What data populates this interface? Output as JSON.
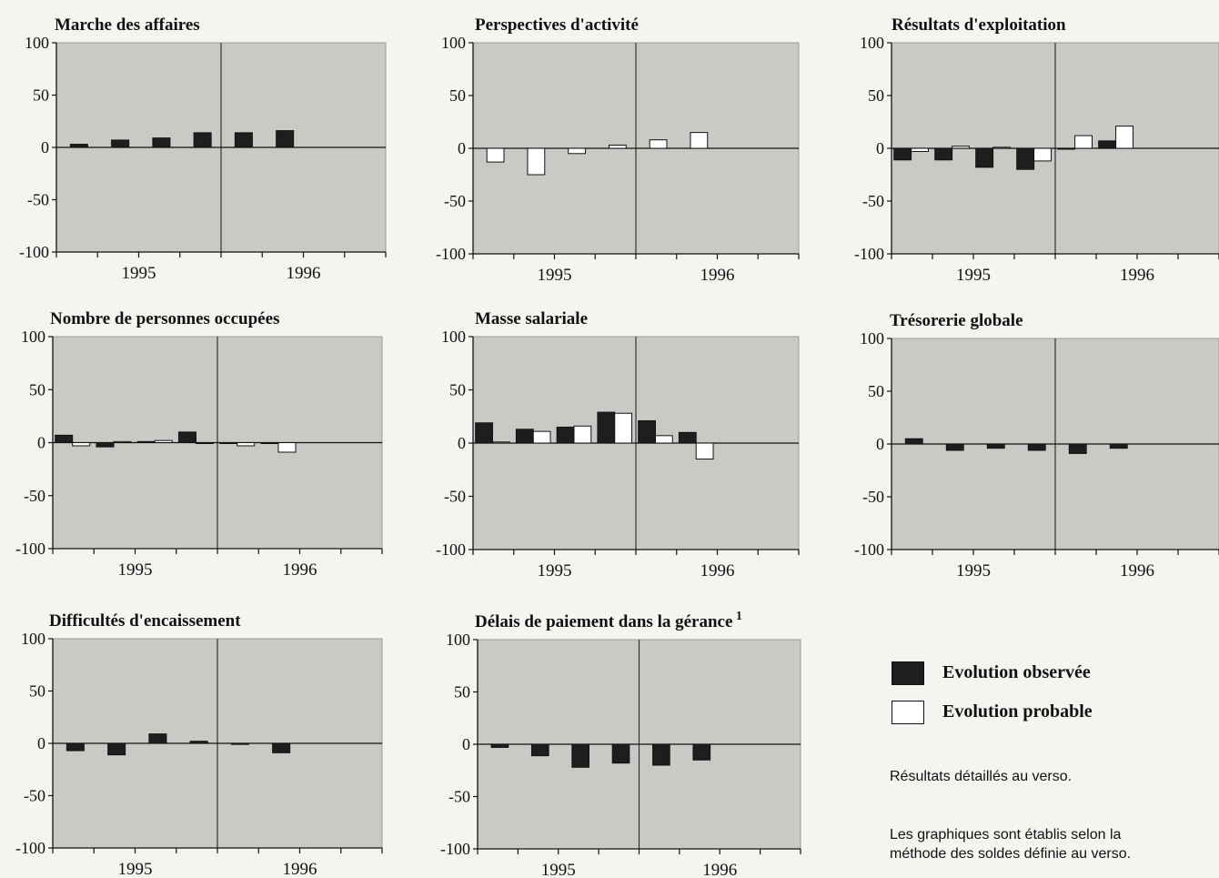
{
  "colors": {
    "plot_bg": "#c9c9c6",
    "observed": "#1e1e1e",
    "probable": "#ffffff",
    "axis": "#111111"
  },
  "legend": {
    "observed": "Evolution observée",
    "probable": "Evolution probable"
  },
  "notes": {
    "details": "Résultats détaillés au verso.",
    "method_line1": "Les graphiques sont établis selon la",
    "method_line2": "méthode des soldes définie au verso."
  },
  "chart_data": [
    {
      "type": "bar",
      "title": "Marche des affaires",
      "footnote": "",
      "ylim": [
        -100,
        100
      ],
      "yticks": [
        100,
        50,
        0,
        -50,
        -100
      ],
      "xlabels": [
        "1995",
        "1996"
      ],
      "series": [
        {
          "key": "observed",
          "values": [
            3,
            7,
            9,
            14,
            14,
            16,
            null,
            null
          ]
        }
      ]
    },
    {
      "type": "bar",
      "title": "Perspectives d'activité",
      "footnote": "",
      "ylim": [
        -100,
        100
      ],
      "yticks": [
        100,
        50,
        0,
        -50,
        -100
      ],
      "xlabels": [
        "1995",
        "1996"
      ],
      "series": [
        {
          "key": "probable",
          "values": [
            -13,
            -25,
            -5,
            3,
            8,
            15,
            null,
            null
          ]
        }
      ]
    },
    {
      "type": "bar",
      "title": "Résultats d'exploitation",
      "footnote": "",
      "ylim": [
        -100,
        100
      ],
      "yticks": [
        100,
        50,
        0,
        -50,
        -100
      ],
      "xlabels": [
        "1995",
        "1996"
      ],
      "series": [
        {
          "key": "observed",
          "values": [
            -11,
            -11,
            -18,
            -20,
            0,
            7,
            null,
            null
          ]
        },
        {
          "key": "probable",
          "values": [
            -3,
            2,
            1,
            -12,
            12,
            21,
            null,
            null
          ]
        }
      ]
    },
    {
      "type": "bar",
      "title": "Nombre de personnes occupées",
      "footnote": "",
      "ylim": [
        -100,
        100
      ],
      "yticks": [
        100,
        50,
        0,
        -50,
        -100
      ],
      "xlabels": [
        "1995",
        "1996"
      ],
      "series": [
        {
          "key": "observed",
          "values": [
            7,
            -4,
            1,
            10,
            0,
            0,
            null,
            null
          ]
        },
        {
          "key": "probable",
          "values": [
            -3,
            1,
            2,
            0,
            -3,
            -9,
            null,
            null
          ]
        }
      ]
    },
    {
      "type": "bar",
      "title": "Masse salariale",
      "footnote": "",
      "ylim": [
        -100,
        100
      ],
      "yticks": [
        100,
        50,
        0,
        -50,
        -100
      ],
      "xlabels": [
        "1995",
        "1996"
      ],
      "series": [
        {
          "key": "observed",
          "values": [
            19,
            13,
            15,
            29,
            21,
            10,
            null,
            null
          ]
        },
        {
          "key": "probable",
          "values": [
            1,
            11,
            16,
            28,
            7,
            -15,
            null,
            null
          ]
        }
      ]
    },
    {
      "type": "bar",
      "title": "Trésorerie globale",
      "footnote": "",
      "ylim": [
        -100,
        100
      ],
      "yticks": [
        100,
        50,
        0,
        -50,
        -100
      ],
      "xlabels": [
        "1995",
        "1996"
      ],
      "series": [
        {
          "key": "observed",
          "values": [
            5,
            -6,
            -4,
            -6,
            -9,
            -4,
            null,
            null
          ]
        }
      ]
    },
    {
      "type": "bar",
      "title": "Difficultés d'encaissement",
      "footnote": "",
      "ylim": [
        -100,
        100
      ],
      "yticks": [
        100,
        50,
        0,
        -50,
        -100
      ],
      "xlabels": [
        "1995",
        "1996"
      ],
      "series": [
        {
          "key": "observed",
          "values": [
            -7,
            -11,
            9,
            2,
            -1,
            -9,
            null,
            null
          ]
        }
      ]
    },
    {
      "type": "bar",
      "title": "Délais de paiement dans la gérance",
      "footnote": "1",
      "ylim": [
        -100,
        100
      ],
      "yticks": [
        100,
        50,
        0,
        -50,
        -100
      ],
      "xlabels": [
        "1995",
        "1996"
      ],
      "series": [
        {
          "key": "observed",
          "values": [
            -3,
            -11,
            -22,
            -18,
            -20,
            -15,
            null,
            null
          ]
        }
      ]
    }
  ]
}
